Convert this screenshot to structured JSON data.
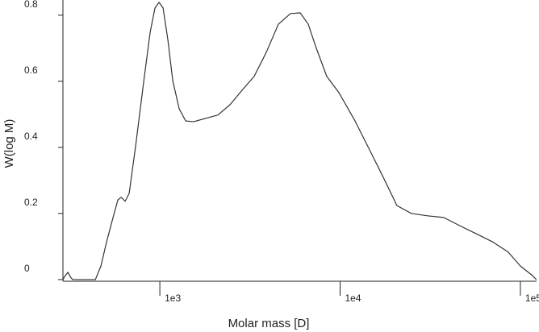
{
  "chart_data": {
    "type": "line",
    "xlabel": "Molar mass [D]",
    "ylabel": "W(log M)",
    "xscale": "log",
    "xlim": [
      290,
      123000
    ],
    "ylim": [
      -0.005,
      0.846
    ],
    "xticks": [
      {
        "value": 1000,
        "label": "1e3"
      },
      {
        "value": 10000,
        "label": "1e4"
      },
      {
        "value": 100000,
        "label": "1e5"
      }
    ],
    "yticks": [
      0.0,
      0.2,
      0.4,
      0.6,
      0.8
    ],
    "color": "#333333",
    "x": [
      290,
      297,
      309,
      322,
      329,
      439,
      471,
      507,
      550,
      585,
      610,
      642,
      676,
      735,
      815,
      884,
      940,
      990,
      1042,
      1109,
      1179,
      1280,
      1391,
      1541,
      1799,
      2100,
      2449,
      2858,
      3335,
      3896,
      4548,
      5309,
      6010,
      6653,
      7380,
      8433,
      9840,
      12100,
      14870,
      17340,
      20660,
      24880,
      30550,
      37560,
      46130,
      56730,
      69650,
      85660,
      100000,
      116700,
      122700
    ],
    "values": [
      0,
      0.01,
      0.022,
      0.005,
      0,
      0,
      0.041,
      0.115,
      0.188,
      0.241,
      0.249,
      0.237,
      0.261,
      0.407,
      0.602,
      0.749,
      0.822,
      0.839,
      0.822,
      0.724,
      0.602,
      0.517,
      0.48,
      0.478,
      0.488,
      0.498,
      0.529,
      0.573,
      0.615,
      0.688,
      0.773,
      0.805,
      0.807,
      0.773,
      0.7,
      0.615,
      0.566,
      0.48,
      0.383,
      0.31,
      0.224,
      0.2,
      0.193,
      0.188,
      0.163,
      0.139,
      0.115,
      0.083,
      0.041,
      0.012,
      0
    ]
  }
}
